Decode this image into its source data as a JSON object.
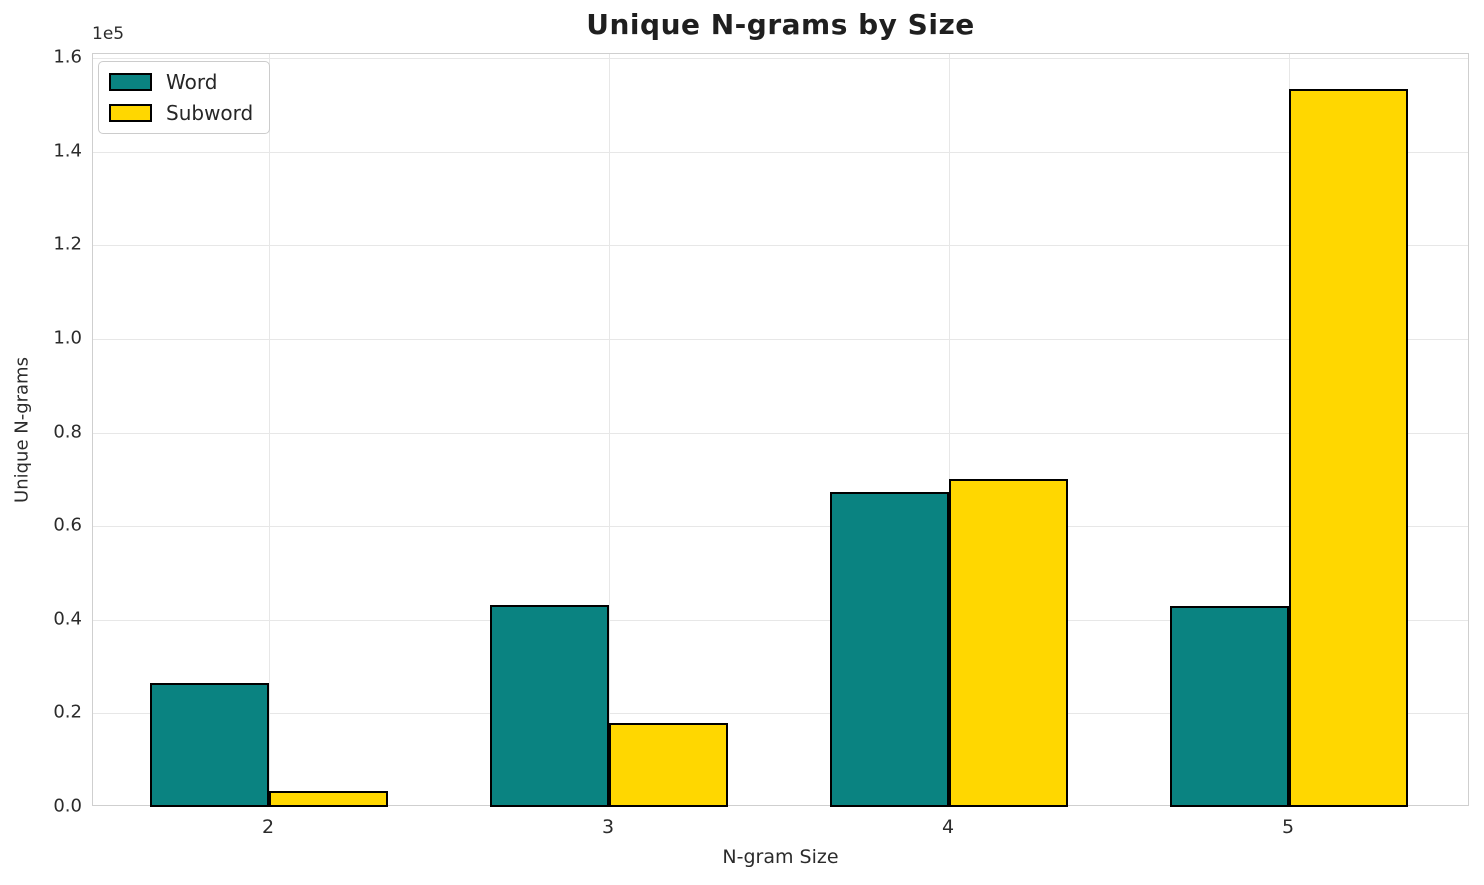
{
  "chart_data": {
    "type": "bar",
    "title": "Unique N-grams by Size",
    "xlabel": "N-gram Size",
    "ylabel": "Unique N-grams",
    "offset_text": "1e5",
    "categories": [
      "2",
      "3",
      "4",
      "5"
    ],
    "series": [
      {
        "name": "Word",
        "color": "#0a8381",
        "values": [
          26500,
          43200,
          67400,
          42900
        ]
      },
      {
        "name": "Subword",
        "color": "#ffd700",
        "values": [
          3400,
          18000,
          70000,
          153400
        ]
      }
    ],
    "ylim": [
      0,
      160000
    ],
    "yticks": [
      0,
      20000,
      40000,
      60000,
      80000,
      100000,
      120000,
      140000,
      160000
    ],
    "ytick_labels": [
      "0.0",
      "0.2",
      "0.4",
      "0.6",
      "0.8",
      "1.0",
      "1.2",
      "1.4",
      "1.6"
    ],
    "grid": true,
    "legend_position": "upper left",
    "bar_edge_color": "#000000"
  }
}
